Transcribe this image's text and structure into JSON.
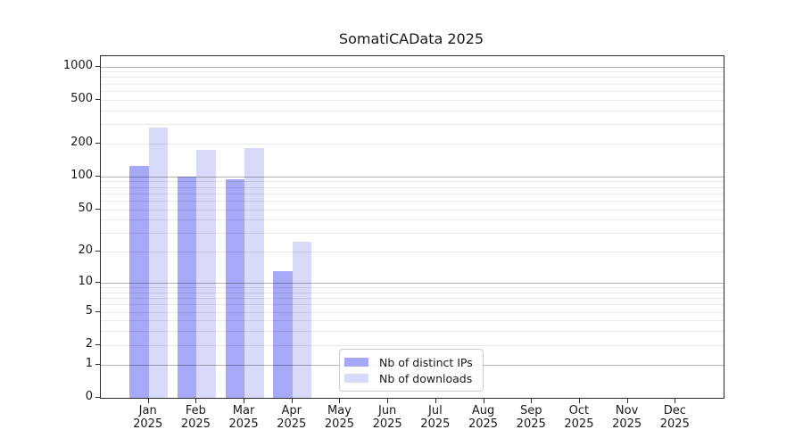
{
  "chart_data": {
    "type": "bar",
    "title": "SomatiCAData 2025",
    "categories": [
      "Jan",
      "Feb",
      "Mar",
      "Apr",
      "May",
      "Jun",
      "Jul",
      "Aug",
      "Sep",
      "Oct",
      "Nov",
      "Dec"
    ],
    "category_year": "2025",
    "series": [
      {
        "name": "Nb of distinct IPs",
        "color": "#a8a8f8",
        "values": [
          125,
          100,
          94,
          13,
          null,
          null,
          null,
          null,
          null,
          null,
          null,
          null
        ]
      },
      {
        "name": "Nb of downloads",
        "color": "#d9d9fa",
        "values": [
          277,
          176,
          180,
          25,
          null,
          null,
          null,
          null,
          null,
          null,
          null,
          null
        ]
      }
    ],
    "y_scale": "log1p",
    "ylim": [
      0,
      1000
    ],
    "y_ticks": [
      0,
      1,
      2,
      5,
      10,
      20,
      50,
      100,
      200,
      500,
      1000
    ],
    "y_major_gridlines": [
      1,
      10,
      100,
      1000
    ],
    "y_minor_gridlines": [
      2,
      3,
      4,
      5,
      6,
      7,
      8,
      9,
      20,
      30,
      40,
      50,
      60,
      70,
      80,
      90,
      200,
      300,
      400,
      500,
      600,
      700,
      800,
      900
    ],
    "grid": true,
    "legend_position": "lower-center",
    "xlabel": "",
    "ylabel": ""
  }
}
